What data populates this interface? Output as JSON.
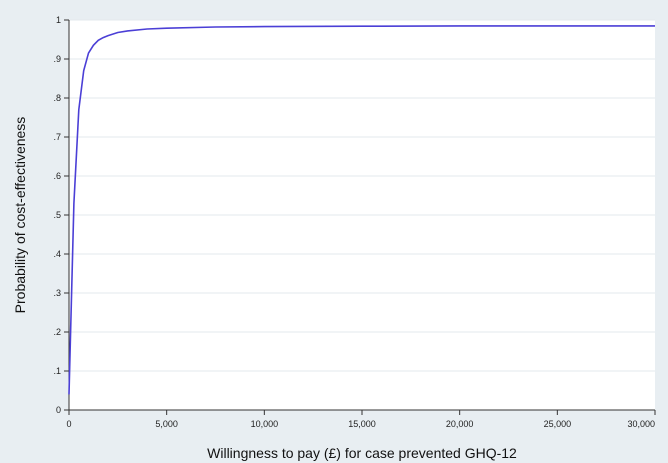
{
  "chart_data": {
    "type": "line",
    "title": "",
    "xlabel": "Willingness to pay (£) for case prevented GHQ-12",
    "ylabel": "Probability of cost-effectiveness",
    "xlim": [
      0,
      30000
    ],
    "ylim": [
      0,
      1
    ],
    "x_ticks": [
      0,
      5000,
      10000,
      15000,
      20000,
      25000,
      30000
    ],
    "x_tick_labels": [
      "0",
      "5,000",
      "10,000",
      "15,000",
      "20,000",
      "25,000",
      "30,000"
    ],
    "y_ticks": [
      0,
      0.1,
      0.2,
      0.3,
      0.4,
      0.5,
      0.6,
      0.7,
      0.8,
      0.9,
      1
    ],
    "y_tick_labels": [
      "0",
      ".1",
      ".2",
      ".3",
      ".4",
      ".5",
      ".6",
      ".7",
      ".8",
      ".9",
      "1"
    ],
    "grid": "horizontal",
    "colors": {
      "line": "#4b3fd6",
      "plot_bg": "#ffffff",
      "outer_bg": "#e8eef2",
      "grid": "#e3e8ec"
    },
    "series": [
      {
        "x": [
          0,
          100,
          250,
          500,
          750,
          1000,
          1250,
          1500,
          1750,
          2000,
          2500,
          3000,
          4000,
          5000,
          7500,
          10000,
          15000,
          20000,
          25000,
          30000
        ],
        "values": [
          0.04,
          0.24,
          0.53,
          0.77,
          0.87,
          0.915,
          0.935,
          0.948,
          0.955,
          0.96,
          0.968,
          0.972,
          0.977,
          0.979,
          0.982,
          0.983,
          0.984,
          0.985,
          0.985,
          0.985
        ]
      }
    ]
  }
}
